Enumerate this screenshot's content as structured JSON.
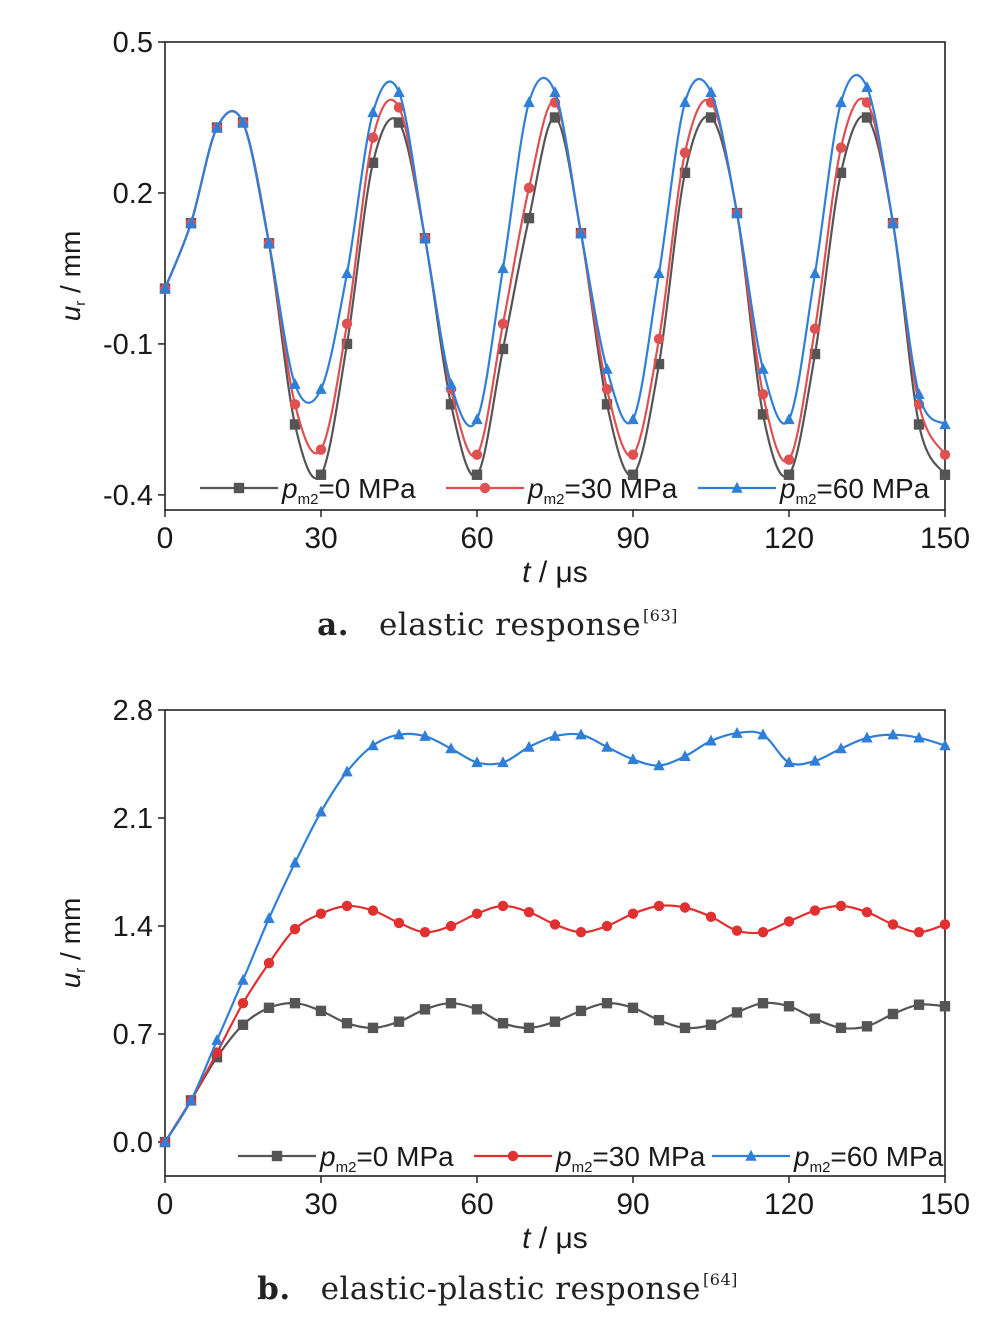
{
  "chart_data": [
    {
      "type": "line",
      "caption": {
        "label": "a.",
        "text": "elastic response",
        "ref": "[63]"
      },
      "xlabel": {
        "var": "t",
        "unit": " / μs"
      },
      "ylabel": {
        "var": "u",
        "sub": "r",
        "unit": " / mm"
      },
      "xlim": [
        0,
        150
      ],
      "ylim": [
        -0.43,
        0.5
      ],
      "xticks": [
        0,
        30,
        60,
        90,
        120,
        150
      ],
      "yticks": [
        -0.4,
        -0.1,
        0.2,
        0.5
      ],
      "ytick_labels": [
        "-0.4",
        "-0.1",
        "0.2",
        "0.5"
      ],
      "grid": false,
      "legend_position": "bottom",
      "series": [
        {
          "name_var": "p",
          "name_sub": "m2",
          "name_rest": "=0 MPa",
          "color": "#555555",
          "marker": "square",
          "x": [
            0,
            5,
            10,
            15,
            20,
            25,
            30,
            35,
            40,
            45,
            50,
            55,
            60,
            65,
            70,
            75,
            80,
            85,
            90,
            95,
            100,
            105,
            110,
            115,
            120,
            125,
            130,
            135,
            140,
            145,
            150
          ],
          "y": [
            0.01,
            0.14,
            0.33,
            0.34,
            0.1,
            -0.26,
            -0.36,
            -0.1,
            0.26,
            0.34,
            0.11,
            -0.22,
            -0.36,
            -0.11,
            0.15,
            0.35,
            0.12,
            -0.22,
            -0.36,
            -0.14,
            0.24,
            0.35,
            0.16,
            -0.24,
            -0.36,
            -0.12,
            0.24,
            0.35,
            0.14,
            -0.26,
            -0.36
          ]
        },
        {
          "name_var": "p",
          "name_sub": "m2",
          "name_rest": "=30 MPa",
          "color": "#e05050",
          "marker": "circle",
          "x": [
            0,
            5,
            10,
            15,
            20,
            25,
            30,
            35,
            40,
            45,
            50,
            55,
            60,
            65,
            70,
            75,
            80,
            85,
            90,
            95,
            100,
            105,
            110,
            115,
            120,
            125,
            130,
            135,
            140,
            145,
            150
          ],
          "y": [
            0.01,
            0.14,
            0.33,
            0.34,
            0.1,
            -0.22,
            -0.31,
            -0.06,
            0.31,
            0.37,
            0.11,
            -0.19,
            -0.32,
            -0.06,
            0.21,
            0.38,
            0.12,
            -0.19,
            -0.32,
            -0.09,
            0.28,
            0.38,
            0.16,
            -0.2,
            -0.33,
            -0.07,
            0.29,
            0.38,
            0.14,
            -0.22,
            -0.32
          ]
        },
        {
          "name_var": "p",
          "name_sub": "m2",
          "name_rest": "=60 MPa",
          "color": "#2f7fd8",
          "marker": "triangle",
          "x": [
            0,
            5,
            10,
            15,
            20,
            25,
            30,
            35,
            40,
            45,
            50,
            55,
            60,
            65,
            70,
            75,
            80,
            85,
            90,
            95,
            100,
            105,
            110,
            115,
            120,
            125,
            130,
            135,
            140,
            145,
            150
          ],
          "y": [
            0.01,
            0.14,
            0.33,
            0.34,
            0.1,
            -0.18,
            -0.19,
            0.04,
            0.36,
            0.4,
            0.11,
            -0.18,
            -0.25,
            0.05,
            0.38,
            0.4,
            0.12,
            -0.15,
            -0.25,
            0.04,
            0.38,
            0.4,
            0.16,
            -0.15,
            -0.25,
            0.04,
            0.38,
            0.41,
            0.14,
            -0.2,
            -0.26
          ]
        }
      ]
    },
    {
      "type": "line",
      "caption": {
        "label": "b.",
        "text": "elastic-plastic response",
        "ref": "[64]"
      },
      "xlabel": {
        "var": "t",
        "unit": " / μs"
      },
      "ylabel": {
        "var": "u",
        "sub": "r",
        "unit": " / mm"
      },
      "xlim": [
        0,
        150
      ],
      "ylim": [
        -0.22,
        2.8
      ],
      "xticks": [
        0,
        30,
        60,
        90,
        120,
        150
      ],
      "yticks": [
        0.0,
        0.7,
        1.4,
        2.1,
        2.8
      ],
      "ytick_labels": [
        "0.0",
        "0.7",
        "1.4",
        "2.1",
        "2.8"
      ],
      "grid": false,
      "legend_position": "bottom",
      "series": [
        {
          "name_var": "p",
          "name_sub": "m2",
          "name_rest": "=0 MPa",
          "color": "#555555",
          "marker": "square",
          "x": [
            0,
            5,
            10,
            15,
            20,
            25,
            30,
            35,
            40,
            45,
            50,
            55,
            60,
            65,
            70,
            75,
            80,
            85,
            90,
            95,
            100,
            105,
            110,
            115,
            120,
            125,
            130,
            135,
            140,
            145,
            150
          ],
          "y": [
            0,
            0.27,
            0.55,
            0.76,
            0.87,
            0.9,
            0.85,
            0.77,
            0.74,
            0.78,
            0.86,
            0.9,
            0.86,
            0.77,
            0.74,
            0.78,
            0.85,
            0.9,
            0.87,
            0.79,
            0.74,
            0.76,
            0.84,
            0.9,
            0.88,
            0.8,
            0.74,
            0.75,
            0.83,
            0.89,
            0.88
          ]
        },
        {
          "name_var": "p",
          "name_sub": "m2",
          "name_rest": "=30 MPa",
          "color": "#e03030",
          "marker": "circle",
          "x": [
            0,
            5,
            10,
            15,
            20,
            25,
            30,
            35,
            40,
            45,
            50,
            55,
            60,
            65,
            70,
            75,
            80,
            85,
            90,
            95,
            100,
            105,
            110,
            115,
            120,
            125,
            130,
            135,
            140,
            145,
            150
          ],
          "y": [
            0,
            0.27,
            0.58,
            0.9,
            1.16,
            1.38,
            1.48,
            1.53,
            1.5,
            1.42,
            1.36,
            1.4,
            1.48,
            1.53,
            1.49,
            1.41,
            1.36,
            1.4,
            1.48,
            1.53,
            1.52,
            1.46,
            1.37,
            1.36,
            1.43,
            1.5,
            1.53,
            1.49,
            1.41,
            1.36,
            1.41
          ]
        },
        {
          "name_var": "p",
          "name_sub": "m2",
          "name_rest": "=60 MPa",
          "color": "#2f7fd8",
          "marker": "triangle",
          "x": [
            0,
            5,
            10,
            15,
            20,
            25,
            30,
            35,
            40,
            45,
            50,
            55,
            60,
            65,
            70,
            75,
            80,
            85,
            90,
            95,
            100,
            105,
            110,
            115,
            120,
            125,
            130,
            135,
            140,
            145,
            150
          ],
          "y": [
            0,
            0.27,
            0.66,
            1.05,
            1.45,
            1.81,
            2.14,
            2.4,
            2.57,
            2.64,
            2.63,
            2.55,
            2.46,
            2.46,
            2.56,
            2.63,
            2.64,
            2.56,
            2.48,
            2.44,
            2.5,
            2.6,
            2.65,
            2.64,
            2.46,
            2.47,
            2.55,
            2.62,
            2.64,
            2.62,
            2.57
          ]
        }
      ]
    }
  ]
}
